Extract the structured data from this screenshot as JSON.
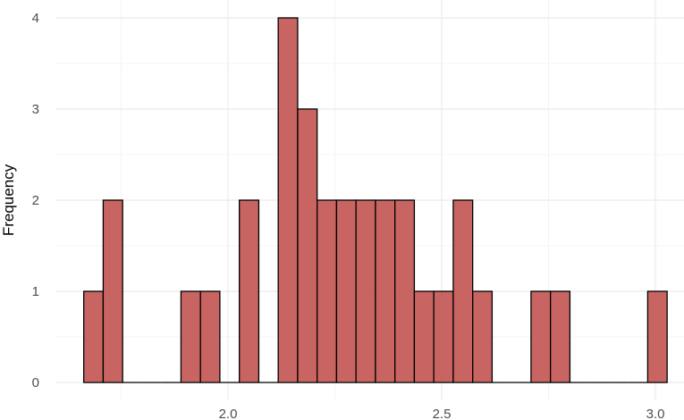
{
  "chart_data": {
    "type": "bar",
    "subtype": "histogram",
    "title": "",
    "xlabel": "",
    "ylabel": "Frequency",
    "xlim": [
      1.62,
      3.05
    ],
    "ylim": [
      0,
      4.2
    ],
    "x_ticks": [
      2.0,
      2.5,
      3.0
    ],
    "x_tick_labels": [
      "2.0",
      "2.5",
      "3.0"
    ],
    "y_ticks": [
      0,
      1,
      2,
      3,
      4
    ],
    "y_tick_labels": [
      "0",
      "1",
      "2",
      "3",
      "4"
    ],
    "grid": true,
    "bin_width": 0.0455,
    "bin_start": 1.6625,
    "counts": [
      1,
      2,
      0,
      0,
      0,
      1,
      1,
      0,
      2,
      0,
      4,
      3,
      2,
      2,
      2,
      2,
      2,
      1,
      1,
      2,
      1,
      0,
      0,
      1,
      1,
      0,
      0,
      0,
      0,
      1
    ],
    "fill_color": "#c0504d",
    "outline_color": "#000000",
    "grid_color": "#ebebeb"
  }
}
